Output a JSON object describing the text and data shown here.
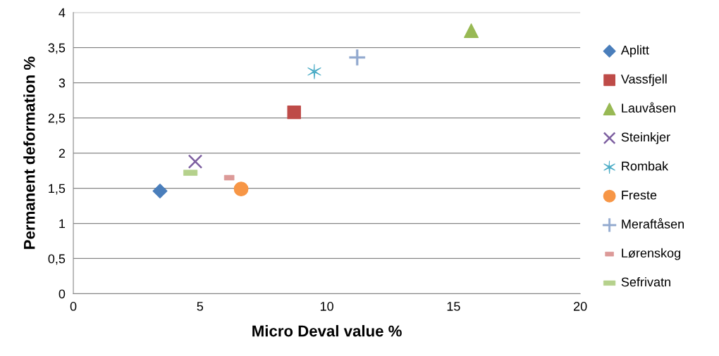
{
  "chart_data": {
    "type": "scatter",
    "xlabel": "Micro Deval value %",
    "ylabel": "Permanent deformation %",
    "xlim": [
      0,
      20
    ],
    "xticks": [
      0,
      5,
      10,
      15,
      20
    ],
    "ylim": [
      0,
      4
    ],
    "yticks": [
      0,
      {
        "value": 0.5,
        "label": "0,5"
      },
      1,
      {
        "value": 1.5,
        "label": "1,5"
      },
      2,
      {
        "value": 2.5,
        "label": "2,5"
      },
      3,
      {
        "value": 3.5,
        "label": "3,5"
      },
      4
    ],
    "grid": "y",
    "legend": "right",
    "series": [
      {
        "name": "Aplitt",
        "color": "#4a7ebb",
        "marker": "diamond",
        "x": [
          3.42
        ],
        "values": [
          1.46
        ]
      },
      {
        "name": "Vassfjell",
        "color": "#be4b48",
        "marker": "square",
        "x": [
          8.71
        ],
        "values": [
          2.58
        ]
      },
      {
        "name": "Lauvåsen",
        "color": "#98b954",
        "marker": "triangle",
        "x": [
          15.7
        ],
        "values": [
          3.74
        ]
      },
      {
        "name": "Steinkjer",
        "color": "#7d5fa0",
        "marker": "cross",
        "x": [
          4.81
        ],
        "values": [
          1.88
        ]
      },
      {
        "name": "Rombak",
        "color": "#4bacc6",
        "marker": "cross",
        "x": [
          9.51
        ],
        "values": [
          3.16
        ]
      },
      {
        "name": "Freste",
        "color": "#f79646",
        "marker": "circle",
        "x": [
          6.62
        ],
        "values": [
          1.49
        ]
      },
      {
        "name": "Meraftåsen",
        "color": "#92a9cf",
        "marker": "cross",
        "x": [
          11.2
        ],
        "values": [
          3.36
        ]
      },
      {
        "name": "Lørenskog",
        "color": "#dc9a98",
        "marker": "square",
        "x": [
          6.15
        ],
        "values": [
          1.65
        ]
      },
      {
        "name": "Sefrivatn",
        "color": "#b5d18c",
        "marker": "square",
        "x": [
          4.62
        ],
        "values": [
          1.72
        ]
      }
    ]
  }
}
